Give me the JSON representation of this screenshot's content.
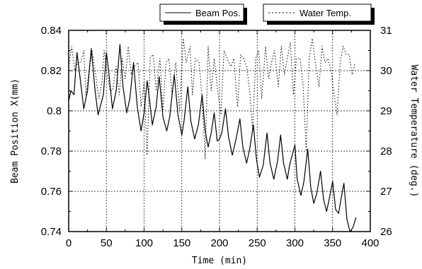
{
  "chart_data": {
    "type": "line",
    "xlabel": "Time (min)",
    "ylabel": "Beam Position X(mm)",
    "y2label": "Water Temperature (deg.)",
    "xlim": [
      0,
      400
    ],
    "ylim": [
      0.74,
      0.84
    ],
    "y2lim": [
      26,
      31
    ],
    "xticks": [
      "0",
      "50",
      "100",
      "150",
      "200",
      "250",
      "300",
      "350",
      "400"
    ],
    "yticks": [
      "0.74",
      "0.76",
      "0.78",
      "0.8",
      "0.82",
      "0.84"
    ],
    "y2ticks": [
      "26",
      "27",
      "28",
      "29",
      "30",
      "31"
    ],
    "grid": true,
    "legend_position": "top",
    "series": [
      {
        "name": "Beam Pos.",
        "axis": "left",
        "style": "solid",
        "color": "#000000",
        "x": [
          0,
          3,
          7,
          11,
          14,
          20,
          25,
          30,
          35,
          39,
          46,
          50,
          53,
          58,
          63,
          68,
          72,
          77,
          81,
          86,
          91,
          96,
          100,
          104,
          107,
          111,
          116,
          120,
          125,
          130,
          134,
          140,
          145,
          150,
          153,
          158,
          162,
          167,
          172,
          177,
          181,
          185,
          189,
          193,
          197,
          200,
          203,
          208,
          212,
          217,
          222,
          227,
          231,
          236,
          240,
          245,
          249,
          253,
          258,
          263,
          267,
          272,
          277,
          281,
          285,
          290,
          293,
          300,
          303,
          308,
          312,
          317,
          321,
          325,
          329,
          334,
          338,
          342,
          346,
          350,
          354,
          358,
          361,
          365,
          369,
          373,
          377,
          381
        ],
        "y": [
          0.805,
          0.81,
          0.808,
          0.829,
          0.82,
          0.801,
          0.81,
          0.831,
          0.81,
          0.798,
          0.808,
          0.829,
          0.82,
          0.801,
          0.81,
          0.833,
          0.812,
          0.799,
          0.806,
          0.824,
          0.802,
          0.79,
          0.799,
          0.815,
          0.806,
          0.793,
          0.802,
          0.817,
          0.797,
          0.79,
          0.797,
          0.818,
          0.798,
          0.788,
          0.795,
          0.812,
          0.795,
          0.786,
          0.793,
          0.808,
          0.79,
          0.782,
          0.789,
          0.799,
          0.785,
          0.786,
          0.789,
          0.801,
          0.787,
          0.778,
          0.786,
          0.796,
          0.782,
          0.774,
          0.781,
          0.793,
          0.776,
          0.767,
          0.773,
          0.789,
          0.774,
          0.766,
          0.775,
          0.788,
          0.774,
          0.766,
          0.773,
          0.783,
          0.766,
          0.758,
          0.765,
          0.781,
          0.762,
          0.754,
          0.759,
          0.77,
          0.756,
          0.75,
          0.757,
          0.765,
          0.751,
          0.749,
          0.756,
          0.764,
          0.746,
          0.74,
          0.742,
          0.747
        ]
      },
      {
        "name": "Water Temp.",
        "axis": "right",
        "style": "dotted",
        "color": "#000000",
        "x": [
          0,
          4,
          8,
          12,
          16,
          20,
          23,
          27,
          31,
          35,
          40,
          44,
          47,
          51,
          55,
          58,
          63,
          67,
          71,
          75,
          79,
          83,
          87,
          92,
          96,
          100,
          104,
          108,
          112,
          116,
          121,
          125,
          129,
          133,
          137,
          142,
          147,
          152,
          156,
          161,
          164,
          168,
          173,
          177,
          181,
          185,
          189,
          193,
          197,
          202,
          206,
          210,
          215,
          219,
          224,
          228,
          232,
          236,
          240,
          244,
          248,
          252,
          256,
          261,
          265,
          269,
          273,
          278,
          282,
          286,
          290,
          294,
          298,
          302,
          307,
          311,
          315,
          319,
          323,
          327,
          332,
          336,
          340,
          344,
          348,
          352,
          356,
          360,
          364,
          368,
          372,
          376,
          380
        ],
        "y": [
          30.1,
          30.6,
          30.0,
          30.2,
          30.2,
          30.5,
          29.4,
          30.0,
          30.5,
          30.0,
          29.3,
          29.7,
          30.5,
          29.9,
          29.5,
          29.5,
          30.1,
          29.4,
          30.3,
          29.8,
          30.6,
          29.9,
          30.1,
          30.2,
          29.1,
          29.7,
          27.9,
          30.3,
          30.4,
          29.5,
          30.3,
          29.0,
          30.2,
          30.3,
          29.4,
          30.2,
          29.0,
          30.8,
          30.2,
          30.6,
          29.4,
          30.3,
          30.2,
          29.3,
          27.8,
          30.6,
          29.5,
          30.3,
          29.6,
          28.9,
          30.5,
          30.3,
          30.1,
          30.3,
          29.1,
          30.4,
          30.3,
          30.1,
          29.5,
          28.5,
          30.3,
          30.5,
          29.3,
          30.6,
          29.8,
          30.2,
          30.5,
          29.6,
          30.6,
          29.9,
          30.3,
          30.7,
          29.4,
          30.3,
          30.3,
          29.6,
          28.0,
          30.3,
          30.8,
          30.2,
          29.6,
          30.6,
          30.2,
          30.3,
          30.0,
          29.4,
          28.9,
          30.2,
          30.6,
          30.4,
          30.4,
          29.9,
          30.2
        ]
      }
    ]
  }
}
